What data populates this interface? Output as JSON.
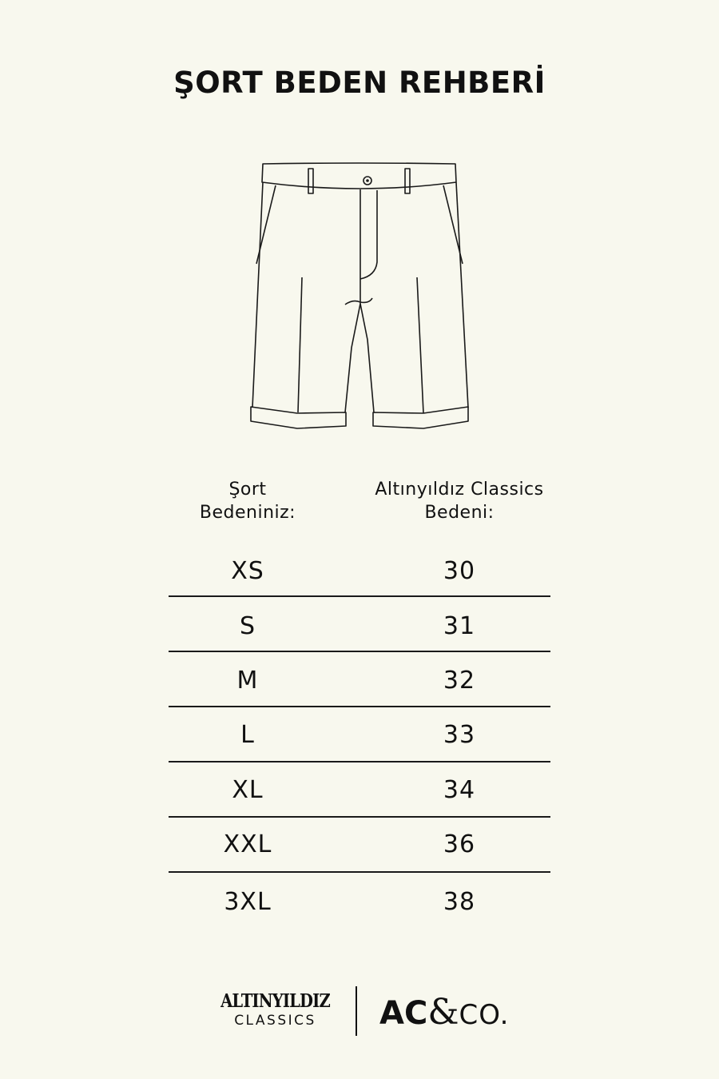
{
  "title": "ŞORT BEDEN REHBERİ",
  "illustration": {
    "icon": "shorts-line-drawing-icon"
  },
  "table": {
    "headers": [
      "Şort\nBedeniniz:",
      "Altınyıldız Classics\nBedeni:"
    ],
    "header_lines": [
      [
        "Şort",
        "Bedeniniz:"
      ],
      [
        "Altınyıldız Classics",
        "Bedeni:"
      ]
    ],
    "rows": [
      [
        "XS",
        "30"
      ],
      [
        "S",
        "31"
      ],
      [
        "M",
        "32"
      ],
      [
        "L",
        "33"
      ],
      [
        "XL",
        "34"
      ],
      [
        "XXL",
        "36"
      ],
      [
        "3XL",
        "38"
      ]
    ]
  },
  "footer": {
    "brand1_line1": "ALTINYILDIZ",
    "brand1_line2": "CLASSICS",
    "brand2_ac": "AC",
    "brand2_amp": "&",
    "brand2_co": "CO."
  },
  "colors": {
    "background": "#f8f8ee",
    "ink": "#111111"
  }
}
